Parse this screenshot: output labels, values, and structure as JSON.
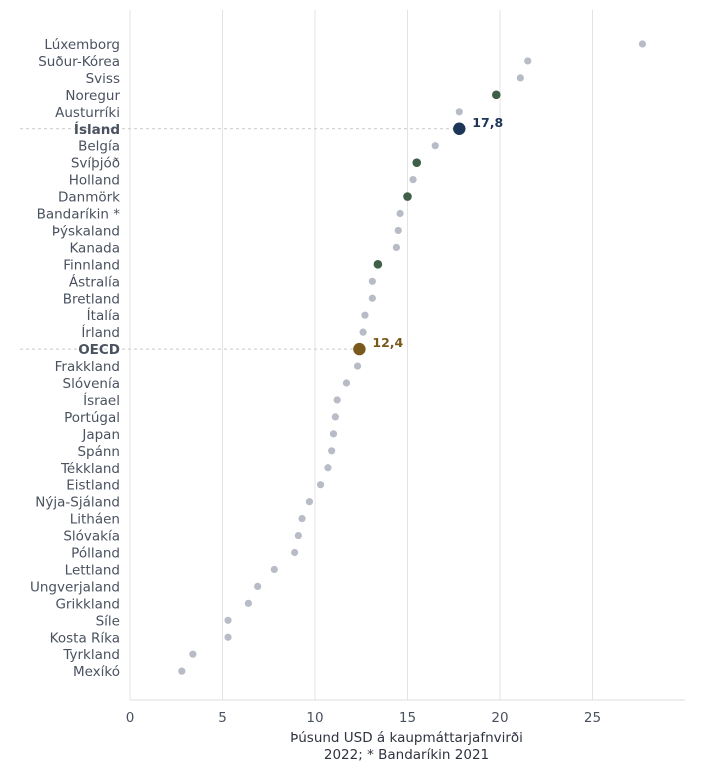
{
  "chart_data": {
    "type": "scatter",
    "title": "",
    "xlabel": "Þúsund USD á kaupmáttarjafnvirði",
    "xlabel_note": "2022; * Bandaríkin 2021",
    "x_ticks": [
      "0",
      "5",
      "10",
      "15",
      "20",
      "25"
    ],
    "xlim": [
      0,
      30
    ],
    "grid": "vertical",
    "colors": {
      "default": "#b7bcc6",
      "nordic": "#3f5f48",
      "iceland": "#1d3557",
      "oecd": "#7a5a1c",
      "label_text": "#4a5260"
    },
    "categories": [
      "Lúxemborg",
      "Suður-Kórea",
      "Sviss",
      "Noregur",
      "Austurríki",
      "Ísland",
      "Belgía",
      "Svíþjóð",
      "Holland",
      "Danmörk",
      "Bandaríkin *",
      "Þýskaland",
      "Kanada",
      "Finnland",
      "Ástralía",
      "Bretland",
      "Ítalía",
      "Írland",
      "OECD",
      "Frakkland",
      "Slóvenía",
      "Ísrael",
      "Portúgal",
      "Japan",
      "Spánn",
      "Tékkland",
      "Eistland",
      "Nýja-Sjáland",
      "Litháen",
      "Slóvakía",
      "Pólland",
      "Lettland",
      "Ungverjaland",
      "Grikkland",
      "Síle",
      "Kosta Ríka",
      "Tyrkland",
      "Mexíkó"
    ],
    "values": [
      27.7,
      21.5,
      21.1,
      19.8,
      17.8,
      17.8,
      16.5,
      15.5,
      15.3,
      15.0,
      14.6,
      14.5,
      14.4,
      13.4,
      13.1,
      13.1,
      12.7,
      12.6,
      12.4,
      12.3,
      11.7,
      11.2,
      11.1,
      11.0,
      10.9,
      10.7,
      10.3,
      9.7,
      9.3,
      9.1,
      8.9,
      7.8,
      6.9,
      6.4,
      5.3,
      5.3,
      3.4,
      2.8
    ],
    "groups": [
      "default",
      "default",
      "default",
      "nordic",
      "default",
      "iceland",
      "default",
      "nordic",
      "default",
      "nordic",
      "default",
      "default",
      "default",
      "nordic",
      "default",
      "default",
      "default",
      "default",
      "oecd",
      "default",
      "default",
      "default",
      "default",
      "default",
      "default",
      "default",
      "default",
      "default",
      "default",
      "default",
      "default",
      "default",
      "default",
      "default",
      "default",
      "default",
      "default",
      "default"
    ],
    "highlights": [
      {
        "category": "Ísland",
        "label": "17,8",
        "color": "#1d3557"
      },
      {
        "category": "OECD",
        "label": "12,4",
        "color": "#7a5a1c"
      }
    ]
  }
}
